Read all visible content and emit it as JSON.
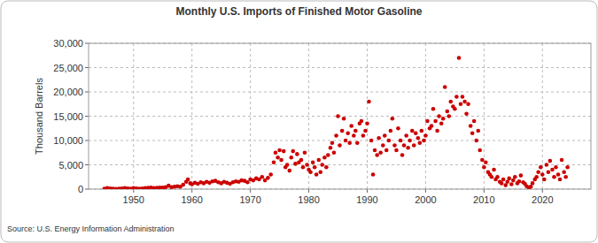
{
  "chart_data": {
    "type": "scatter",
    "title": "Monthly U.S. Imports of Finished Motor Gasoline",
    "y_label": "Thousand Barrels",
    "source": "Source: U.S. Energy Information Administration",
    "color": "#cc0000",
    "marker": "circle",
    "grid": true,
    "xlim": [
      1942.3,
      2028.3
    ],
    "xticks": [
      1950,
      1960,
      1970,
      1980,
      1990,
      2000,
      2010,
      2020
    ],
    "ylim": [
      0,
      30000
    ],
    "yticks": [
      0,
      {
        "value": 5000,
        "label": "5,000"
      },
      {
        "value": 10000,
        "label": "10,000"
      },
      {
        "value": 15000,
        "label": "15,000"
      },
      {
        "value": 20000,
        "label": "20,000"
      },
      {
        "value": 25000,
        "label": "25,000"
      },
      {
        "value": 30000,
        "label": "30,000"
      }
    ],
    "x": [
      1945.0,
      1945.5,
      1946.0,
      1946.5,
      1947.0,
      1947.5,
      1948.0,
      1948.5,
      1949.0,
      1949.5,
      1950.0,
      1950.5,
      1951.0,
      1951.5,
      1952.0,
      1952.5,
      1953.0,
      1953.5,
      1954.0,
      1954.5,
      1955.0,
      1955.5,
      1956.0,
      1956.5,
      1957.0,
      1957.5,
      1958.0,
      1958.5,
      1959.0,
      1959.3,
      1959.7,
      1960.0,
      1960.5,
      1961.0,
      1961.5,
      1962.0,
      1962.5,
      1963.0,
      1963.5,
      1964.0,
      1964.5,
      1965.0,
      1965.5,
      1966.0,
      1966.5,
      1967.0,
      1967.5,
      1968.0,
      1968.5,
      1969.0,
      1969.5,
      1970.0,
      1970.5,
      1971.0,
      1971.5,
      1972.0,
      1972.5,
      1973.0,
      1973.5,
      1974.0,
      1974.3,
      1974.7,
      1975.0,
      1975.3,
      1975.7,
      1976.0,
      1976.3,
      1976.7,
      1977.0,
      1977.3,
      1977.7,
      1978.0,
      1978.3,
      1978.7,
      1979.0,
      1979.3,
      1979.7,
      1980.0,
      1980.3,
      1980.7,
      1981.0,
      1981.3,
      1981.7,
      1982.0,
      1982.3,
      1982.7,
      1983.0,
      1983.3,
      1983.7,
      1984.0,
      1984.3,
      1984.7,
      1985.0,
      1985.3,
      1985.7,
      1986.0,
      1986.3,
      1986.7,
      1987.0,
      1987.3,
      1987.7,
      1988.0,
      1988.3,
      1988.7,
      1989.0,
      1989.3,
      1989.7,
      1990.0,
      1990.3,
      1990.7,
      1991.0,
      1991.3,
      1991.7,
      1992.0,
      1992.3,
      1992.7,
      1993.0,
      1993.3,
      1993.7,
      1994.0,
      1994.3,
      1994.7,
      1995.0,
      1995.3,
      1995.7,
      1996.0,
      1996.3,
      1996.7,
      1997.0,
      1997.3,
      1997.7,
      1998.0,
      1998.3,
      1998.7,
      1999.0,
      1999.3,
      1999.7,
      2000.0,
      2000.3,
      2000.7,
      2001.0,
      2001.3,
      2001.7,
      2002.0,
      2002.3,
      2002.7,
      2003.0,
      2003.3,
      2003.7,
      2004.0,
      2004.3,
      2004.7,
      2005.0,
      2005.3,
      2005.7,
      2006.0,
      2006.3,
      2006.7,
      2007.0,
      2007.3,
      2007.7,
      2008.0,
      2008.3,
      2008.7,
      2009.0,
      2009.3,
      2009.7,
      2010.0,
      2010.3,
      2010.7,
      2011.0,
      2011.3,
      2011.7,
      2012.0,
      2012.3,
      2012.7,
      2013.0,
      2013.3,
      2013.7,
      2014.0,
      2014.3,
      2014.7,
      2015.0,
      2015.3,
      2015.7,
      2016.0,
      2016.3,
      2016.7,
      2017.0,
      2017.3,
      2017.7,
      2018.0,
      2018.3,
      2018.7,
      2019.0,
      2019.3,
      2019.7,
      2020.0,
      2020.3,
      2020.7,
      2021.0,
      2021.3,
      2021.7,
      2022.0,
      2022.3,
      2022.7,
      2023.0,
      2023.3,
      2023.7,
      2024.0,
      2024.3
    ],
    "values": [
      100,
      200,
      150,
      100,
      50,
      100,
      150,
      200,
      150,
      100,
      200,
      150,
      100,
      150,
      200,
      250,
      300,
      200,
      250,
      300,
      300,
      400,
      700,
      400,
      500,
      600,
      500,
      900,
      1500,
      2000,
      1200,
      1000,
      1300,
      1100,
      1400,
      1200,
      1500,
      1300,
      1600,
      1700,
      1400,
      1200,
      1500,
      1300,
      1100,
      1400,
      1600,
      1500,
      1800,
      1700,
      1400,
      2000,
      1800,
      2200,
      2000,
      2500,
      1800,
      2300,
      3000,
      5500,
      7500,
      6500,
      8000,
      6000,
      7800,
      4500,
      5000,
      3800,
      6500,
      7800,
      5200,
      7200,
      5500,
      6000,
      4500,
      7500,
      5000,
      4000,
      3500,
      5500,
      4500,
      3000,
      6000,
      3500,
      5000,
      6500,
      4500,
      7000,
      8500,
      9500,
      7500,
      11000,
      15000,
      9000,
      12000,
      14500,
      10000,
      11500,
      9500,
      13000,
      11000,
      12000,
      9500,
      13500,
      14000,
      11000,
      12000,
      13500,
      18000,
      10000,
      3000,
      8000,
      7000,
      10500,
      7500,
      9000,
      11000,
      8000,
      10000,
      12000,
      14500,
      9000,
      8000,
      12500,
      10000,
      7000,
      9000,
      11000,
      8500,
      10000,
      12000,
      9000,
      11500,
      10500,
      9500,
      12000,
      10000,
      11000,
      14000,
      12500,
      13000,
      16500,
      14000,
      12000,
      15000,
      13500,
      14500,
      21000,
      16000,
      15000,
      18000,
      17000,
      16500,
      19000,
      27000,
      17500,
      19000,
      18000,
      15500,
      17500,
      13000,
      11500,
      14000,
      10000,
      12000,
      8000,
      6000,
      4500,
      5500,
      3500,
      3000,
      2500,
      4000,
      2000,
      2500,
      1500,
      1200,
      2000,
      800,
      1500,
      2200,
      1000,
      1800,
      2500,
      1200,
      1600,
      2800,
      1400,
      1100,
      600,
      300,
      500,
      1200,
      2000,
      2500,
      3500,
      4500,
      3000,
      2000,
      5000,
      3500,
      5800,
      4000,
      2500,
      4500,
      3000,
      2000,
      6000,
      3500,
      2500,
      4500
    ]
  }
}
